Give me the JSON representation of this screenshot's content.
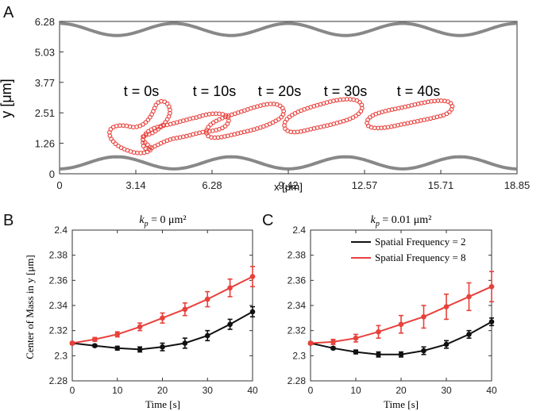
{
  "chart_data": [
    {
      "panel": "A",
      "type": "scatter",
      "xlabel": "x [μm]",
      "ylabel": "y [μm]",
      "xlim": [
        0,
        18.85
      ],
      "ylim": [
        0,
        6.28
      ],
      "xticks": [
        "0",
        "3.14",
        "6.28",
        "9.42",
        "12.57",
        "15.71",
        "18.85"
      ],
      "yticks": [
        "0",
        "1.26",
        "2.51",
        "3.77",
        "5.03",
        "6.28"
      ],
      "walls": [
        {
          "name": "top-wall",
          "mean": 5.95,
          "amplitude": 0.25,
          "periods": 4,
          "color": "#888888"
        },
        {
          "name": "bottom-wall",
          "mean": 0.45,
          "amplitude": 0.25,
          "periods": 4,
          "color": "#888888"
        }
      ],
      "annotations": [
        "t = 0s",
        "t = 10s",
        "t = 20s",
        "t = 30s",
        "t = 40s"
      ],
      "shapes_color": "#e8413c"
    },
    {
      "panel": "B",
      "type": "line",
      "title": "k_p = 0 μm²",
      "title_main": "k",
      "title_sub": "p",
      "title_rest": " = 0 μm²",
      "xlabel": "Time [s]",
      "ylabel": "Center of Mass in y [μm]",
      "xlim": [
        0,
        40
      ],
      "ylim": [
        2.28,
        2.4
      ],
      "xticks": [
        "0",
        "10",
        "20",
        "30",
        "40"
      ],
      "yticks": [
        "2.28",
        "2.3",
        "2.32",
        "2.34",
        "2.36",
        "2.38",
        "2.4"
      ],
      "x": [
        0,
        5,
        10,
        15,
        20,
        25,
        30,
        35,
        40
      ],
      "series": [
        {
          "name": "Spatial Frequency = 2",
          "color": "#111111",
          "values": [
            2.31,
            2.308,
            2.306,
            2.305,
            2.307,
            2.31,
            2.316,
            2.325,
            2.335
          ],
          "errors": [
            0.001,
            0.001,
            0.0015,
            0.002,
            0.003,
            0.004,
            0.004,
            0.004,
            0.004
          ]
        },
        {
          "name": "Spatial Frequency = 8",
          "color": "#e8413c",
          "values": [
            2.31,
            2.313,
            2.317,
            2.323,
            2.33,
            2.337,
            2.345,
            2.354,
            2.363
          ],
          "errors": [
            0.001,
            0.0015,
            0.002,
            0.003,
            0.004,
            0.005,
            0.006,
            0.007,
            0.008
          ]
        }
      ]
    },
    {
      "panel": "C",
      "type": "line",
      "title": "k_p = 0.01 μm²",
      "title_main": "k",
      "title_sub": "p",
      "title_rest": " = 0.01 μm²",
      "xlabel": "Time [s]",
      "ylabel": "",
      "xlim": [
        0,
        40
      ],
      "ylim": [
        2.28,
        2.4
      ],
      "xticks": [
        "0",
        "10",
        "20",
        "30",
        "40"
      ],
      "yticks": [
        "2.28",
        "2.3",
        "2.32",
        "2.34",
        "2.36",
        "2.38",
        "2.4"
      ],
      "legend": [
        "Spatial Frequency = 2",
        "Spatial Frequency = 8"
      ],
      "legend_position": "top-right",
      "x": [
        0,
        5,
        10,
        15,
        20,
        25,
        30,
        35,
        40
      ],
      "series": [
        {
          "name": "Spatial Frequency = 2",
          "color": "#111111",
          "values": [
            2.31,
            2.306,
            2.303,
            2.301,
            2.301,
            2.304,
            2.309,
            2.317,
            2.327
          ],
          "errors": [
            0.001,
            0.001,
            0.0015,
            0.002,
            0.002,
            0.003,
            0.003,
            0.003,
            0.003
          ]
        },
        {
          "name": "Spatial Frequency = 8",
          "color": "#e8413c",
          "values": [
            2.31,
            2.311,
            2.314,
            2.319,
            2.325,
            2.331,
            2.339,
            2.347,
            2.355
          ],
          "errors": [
            0.001,
            0.002,
            0.003,
            0.005,
            0.007,
            0.009,
            0.01,
            0.011,
            0.012
          ]
        }
      ]
    }
  ],
  "panel_labels": [
    "A",
    "B",
    "C"
  ]
}
